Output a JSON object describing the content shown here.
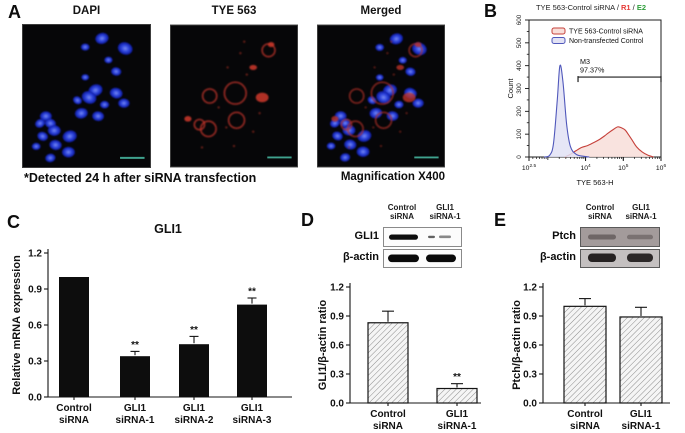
{
  "panel_a": {
    "label": "A",
    "images": [
      {
        "title": "DAPI"
      },
      {
        "title": "TYE 563"
      },
      {
        "title": "Merged"
      }
    ],
    "caption": "*Detected 24 h after siRNA transfection",
    "magnification_note": "Magnification X400",
    "scalebar_color": "#3fa28e"
  },
  "panel_b": {
    "label": "B",
    "title": {
      "prefix": "TYE 563-Control siRNA / ",
      "r1": "R1",
      "slash": " / ",
      "e2": "E2"
    },
    "r1_color": "#e53935",
    "e2_color": "#2e9e3a"
  },
  "panel_c": {
    "label": "C"
  },
  "panel_d": {
    "label": "D",
    "blot": {
      "col_headers": [
        [
          "Control",
          "siRNA"
        ],
        [
          "GLI1",
          "siRNA-1"
        ]
      ],
      "row_labels": [
        "GLI1",
        "β-actin"
      ]
    }
  },
  "panel_e": {
    "label": "E",
    "blot": {
      "col_headers": [
        [
          "Control",
          "siRNA"
        ],
        [
          "GLI1",
          "siRNA-1"
        ]
      ],
      "row_labels": [
        "Ptch",
        "β-actin"
      ]
    }
  },
  "chart_data": [
    {
      "id": "flow_histogram_b",
      "type": "area",
      "title": "TYE 563-Control siRNA / R1 / E2",
      "xlabel": "TYE 563-H",
      "ylabel": "Count",
      "xscale": "log10",
      "xlim": [
        2.5,
        6
      ],
      "ylim": [
        0,
        600
      ],
      "yticks": [
        0,
        100,
        200,
        300,
        400,
        500,
        600
      ],
      "xticks": [
        {
          "log": 2.5,
          "base": "10",
          "exp": "2.5"
        },
        {
          "log": 4,
          "base": "10",
          "exp": "4"
        },
        {
          "log": 5,
          "base": "10",
          "exp": "5"
        },
        {
          "log": 6,
          "base": "10",
          "exp": "6"
        }
      ],
      "legend": [
        {
          "name": "TYE 563-Control siRNA",
          "stroke": "#c6413b",
          "fill": "#f8ded9"
        },
        {
          "name": "Non-transfected Control",
          "stroke": "#5058bb",
          "fill": "#e2e2f4"
        }
      ],
      "gate": {
        "label": "M3",
        "percent": "97.37%",
        "from_log": 3.8,
        "to_log": 6,
        "count": 350
      },
      "series": [
        {
          "name": "TYE 563-Control siRNA",
          "stroke": "#c6413b",
          "fill": "#f8ded9",
          "points": [
            [
              3.45,
              0
            ],
            [
              3.6,
              12
            ],
            [
              3.75,
              28
            ],
            [
              3.9,
              42
            ],
            [
              4.05,
              50
            ],
            [
              4.2,
              62
            ],
            [
              4.35,
              75
            ],
            [
              4.5,
              92
            ],
            [
              4.6,
              105
            ],
            [
              4.75,
              122
            ],
            [
              4.85,
              132
            ],
            [
              4.95,
              128
            ],
            [
              5.05,
              118
            ],
            [
              5.15,
              95
            ],
            [
              5.25,
              70
            ],
            [
              5.35,
              45
            ],
            [
              5.5,
              22
            ],
            [
              5.65,
              8
            ],
            [
              5.8,
              0
            ]
          ]
        },
        {
          "name": "Non-transfected Control",
          "stroke": "#5058bb",
          "fill": "#e2e2f4",
          "points": [
            [
              2.9,
              0
            ],
            [
              3.05,
              8
            ],
            [
              3.15,
              60
            ],
            [
              3.25,
              250
            ],
            [
              3.32,
              400
            ],
            [
              3.4,
              330
            ],
            [
              3.5,
              140
            ],
            [
              3.6,
              45
            ],
            [
              3.75,
              12
            ],
            [
              3.95,
              3
            ],
            [
              4.1,
              0
            ]
          ]
        }
      ]
    },
    {
      "id": "mrna_expression_c",
      "type": "bar",
      "title": "GLI1",
      "ylabel": "Relative mRNA expression",
      "categories": [
        [
          "Control",
          "siRNA"
        ],
        [
          "GLI1",
          "siRNA-1"
        ],
        [
          "GLI1",
          "siRNA-2"
        ],
        [
          "GLI1",
          "siRNA-3"
        ]
      ],
      "values": [
        1.0,
        0.34,
        0.44,
        0.77
      ],
      "errors": [
        0,
        0.04,
        0.065,
        0.055
      ],
      "significance": [
        "",
        "**",
        "**",
        "**"
      ],
      "yticks": [
        0,
        0.3,
        0.6,
        0.9,
        1.2
      ],
      "ylim": [
        0,
        1.2
      ],
      "bar_fill": "solid-black"
    },
    {
      "id": "gli1_protein_d",
      "type": "bar",
      "title": "",
      "ylabel": "GLI1/β-actin ratio",
      "categories": [
        [
          "Control",
          "siRNA"
        ],
        [
          "GLI1",
          "siRNA-1"
        ]
      ],
      "values": [
        0.83,
        0.15
      ],
      "errors": [
        0.12,
        0.05
      ],
      "significance": [
        "",
        "**"
      ],
      "yticks": [
        0,
        0.3,
        0.6,
        0.9,
        1.2
      ],
      "ylim": [
        0,
        1.2
      ],
      "bar_fill": "hatched"
    },
    {
      "id": "ptch_protein_e",
      "type": "bar",
      "title": "",
      "ylabel": "Ptch/β-actin ratio",
      "categories": [
        [
          "Control",
          "siRNA"
        ],
        [
          "GLI1",
          "siRNA-1"
        ]
      ],
      "values": [
        1.0,
        0.89
      ],
      "errors": [
        0.08,
        0.1
      ],
      "significance": [
        "",
        ""
      ],
      "yticks": [
        0,
        0.3,
        0.6,
        0.9,
        1.2
      ],
      "ylim": [
        0,
        1.2
      ],
      "bar_fill": "hatched"
    }
  ]
}
